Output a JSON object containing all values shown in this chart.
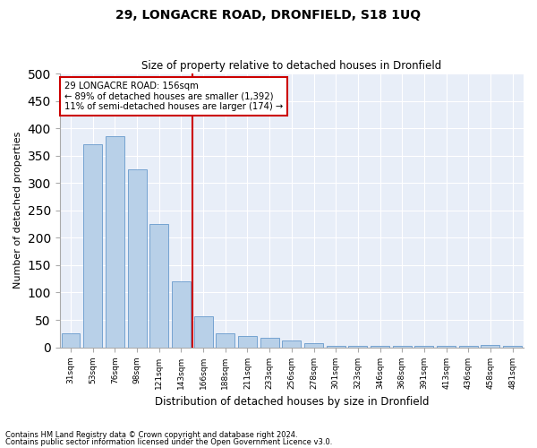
{
  "title": "29, LONGACRE ROAD, DRONFIELD, S18 1UQ",
  "subtitle": "Size of property relative to detached houses in Dronfield",
  "xlabel": "Distribution of detached houses by size in Dronfield",
  "ylabel": "Number of detached properties",
  "categories": [
    "31sqm",
    "53sqm",
    "76sqm",
    "98sqm",
    "121sqm",
    "143sqm",
    "166sqm",
    "188sqm",
    "211sqm",
    "233sqm",
    "256sqm",
    "278sqm",
    "301sqm",
    "323sqm",
    "346sqm",
    "368sqm",
    "391sqm",
    "413sqm",
    "436sqm",
    "458sqm",
    "481sqm"
  ],
  "values": [
    25,
    370,
    385,
    325,
    225,
    120,
    57,
    25,
    20,
    17,
    13,
    7,
    3,
    3,
    3,
    3,
    2,
    2,
    2,
    5,
    3
  ],
  "bar_color": "#b8d0e8",
  "bar_edge_color": "#6699cc",
  "background_color": "#e8eef8",
  "grid_color": "#ffffff",
  "annotation_line_label": "29 LONGACRE ROAD: 156sqm",
  "annotation_text1": "← 89% of detached houses are smaller (1,392)",
  "annotation_text2": "11% of semi-detached houses are larger (174) →",
  "annotation_box_color": "#ffffff",
  "annotation_box_edge": "#cc0000",
  "vline_color": "#cc0000",
  "ylim": [
    0,
    500
  ],
  "yticks": [
    0,
    50,
    100,
    150,
    200,
    250,
    300,
    350,
    400,
    450,
    500
  ],
  "footnote1": "Contains HM Land Registry data © Crown copyright and database right 2024.",
  "footnote2": "Contains public sector information licensed under the Open Government Licence v3.0.",
  "fig_bg": "#ffffff"
}
